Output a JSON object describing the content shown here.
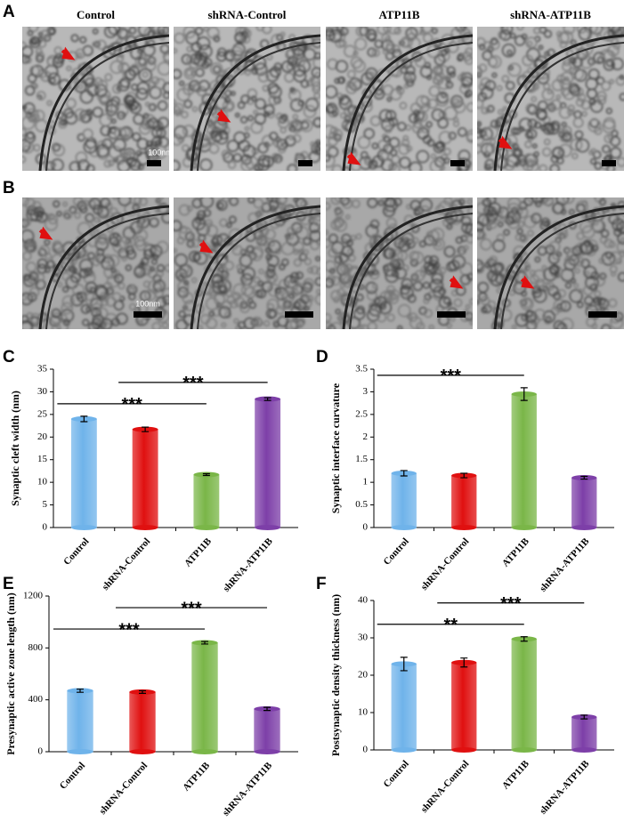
{
  "micrographs": {
    "columns": [
      "Control",
      "shRNA-Control",
      "ATP11B",
      "shRNA-ATP11B"
    ],
    "rows": [
      {
        "panel": "A",
        "scale": "100nm"
      },
      {
        "panel": "B",
        "scale": "100nm"
      }
    ]
  },
  "chart_data": [
    {
      "panel": "C",
      "type": "bar",
      "ylabel": "Synaptic cleft width (nm)",
      "categories": [
        "Control",
        "shRNA-Control",
        "ATP11B",
        "shRNA-ATP11B"
      ],
      "values": [
        24,
        21.7,
        11.7,
        28.4
      ],
      "errors": [
        0.6,
        0.5,
        0.2,
        0.3
      ],
      "colors": [
        "#6fb3ea",
        "#e01010",
        "#7ab648",
        "#7d3fa8"
      ],
      "ylim": [
        0,
        35
      ],
      "yticks": [
        0,
        5,
        10,
        15,
        20,
        25,
        30,
        35
      ],
      "significance": [
        {
          "between": [
            "Control",
            "ATP11B"
          ],
          "label": "***"
        },
        {
          "between": [
            "shRNA-Control",
            "shRNA-ATP11B"
          ],
          "label": "***"
        }
      ]
    },
    {
      "panel": "D",
      "type": "bar",
      "ylabel": "Synaptic interface curvature",
      "categories": [
        "Control",
        "shRNA-Control",
        "ATP11B",
        "shRNA-ATP11B"
      ],
      "values": [
        1.2,
        1.15,
        2.95,
        1.1
      ],
      "errors": [
        0.06,
        0.05,
        0.14,
        0.03
      ],
      "colors": [
        "#6fb3ea",
        "#e01010",
        "#7ab648",
        "#7d3fa8"
      ],
      "ylim": [
        0,
        3.5
      ],
      "yticks": [
        0,
        0.5,
        1,
        1.5,
        2,
        2.5,
        3,
        3.5
      ],
      "significance": [
        {
          "between": [
            "Control",
            "ATP11B"
          ],
          "label": "***"
        }
      ]
    },
    {
      "panel": "E",
      "type": "bar",
      "ylabel": "Presynaptic active zone  length (nm)",
      "categories": [
        "Control",
        "shRNA-Control",
        "ATP11B",
        "shRNA-ATP11B"
      ],
      "values": [
        470,
        460,
        840,
        330
      ],
      "errors": [
        12,
        10,
        10,
        12
      ],
      "colors": [
        "#6fb3ea",
        "#e01010",
        "#7ab648",
        "#7d3fa8"
      ],
      "ylim": [
        0,
        1200
      ],
      "yticks": [
        0,
        400,
        800,
        1200
      ],
      "significance": [
        {
          "between": [
            "Control",
            "ATP11B"
          ],
          "label": "***"
        },
        {
          "between": [
            "shRNA-Control",
            "shRNA-ATP11B"
          ],
          "label": "***"
        }
      ]
    },
    {
      "panel": "F",
      "type": "bar",
      "ylabel": "Postsynaptic density thickness (nm)",
      "categories": [
        "Control",
        "shRNA-Control",
        "ATP11B",
        "shRNA-ATP11B"
      ],
      "values": [
        23,
        23.4,
        29.7,
        8.8
      ],
      "errors": [
        1.8,
        1.2,
        0.6,
        0.5
      ],
      "colors": [
        "#6fb3ea",
        "#e01010",
        "#7ab648",
        "#7d3fa8"
      ],
      "ylim": [
        0,
        40
      ],
      "yticks": [
        0,
        10,
        20,
        30,
        40
      ],
      "significance": [
        {
          "between": [
            "Control",
            "ATP11B"
          ],
          "label": "**"
        },
        {
          "between": [
            "shRNA-Control",
            "shRNA-ATP11B"
          ],
          "label": "***"
        }
      ]
    }
  ]
}
